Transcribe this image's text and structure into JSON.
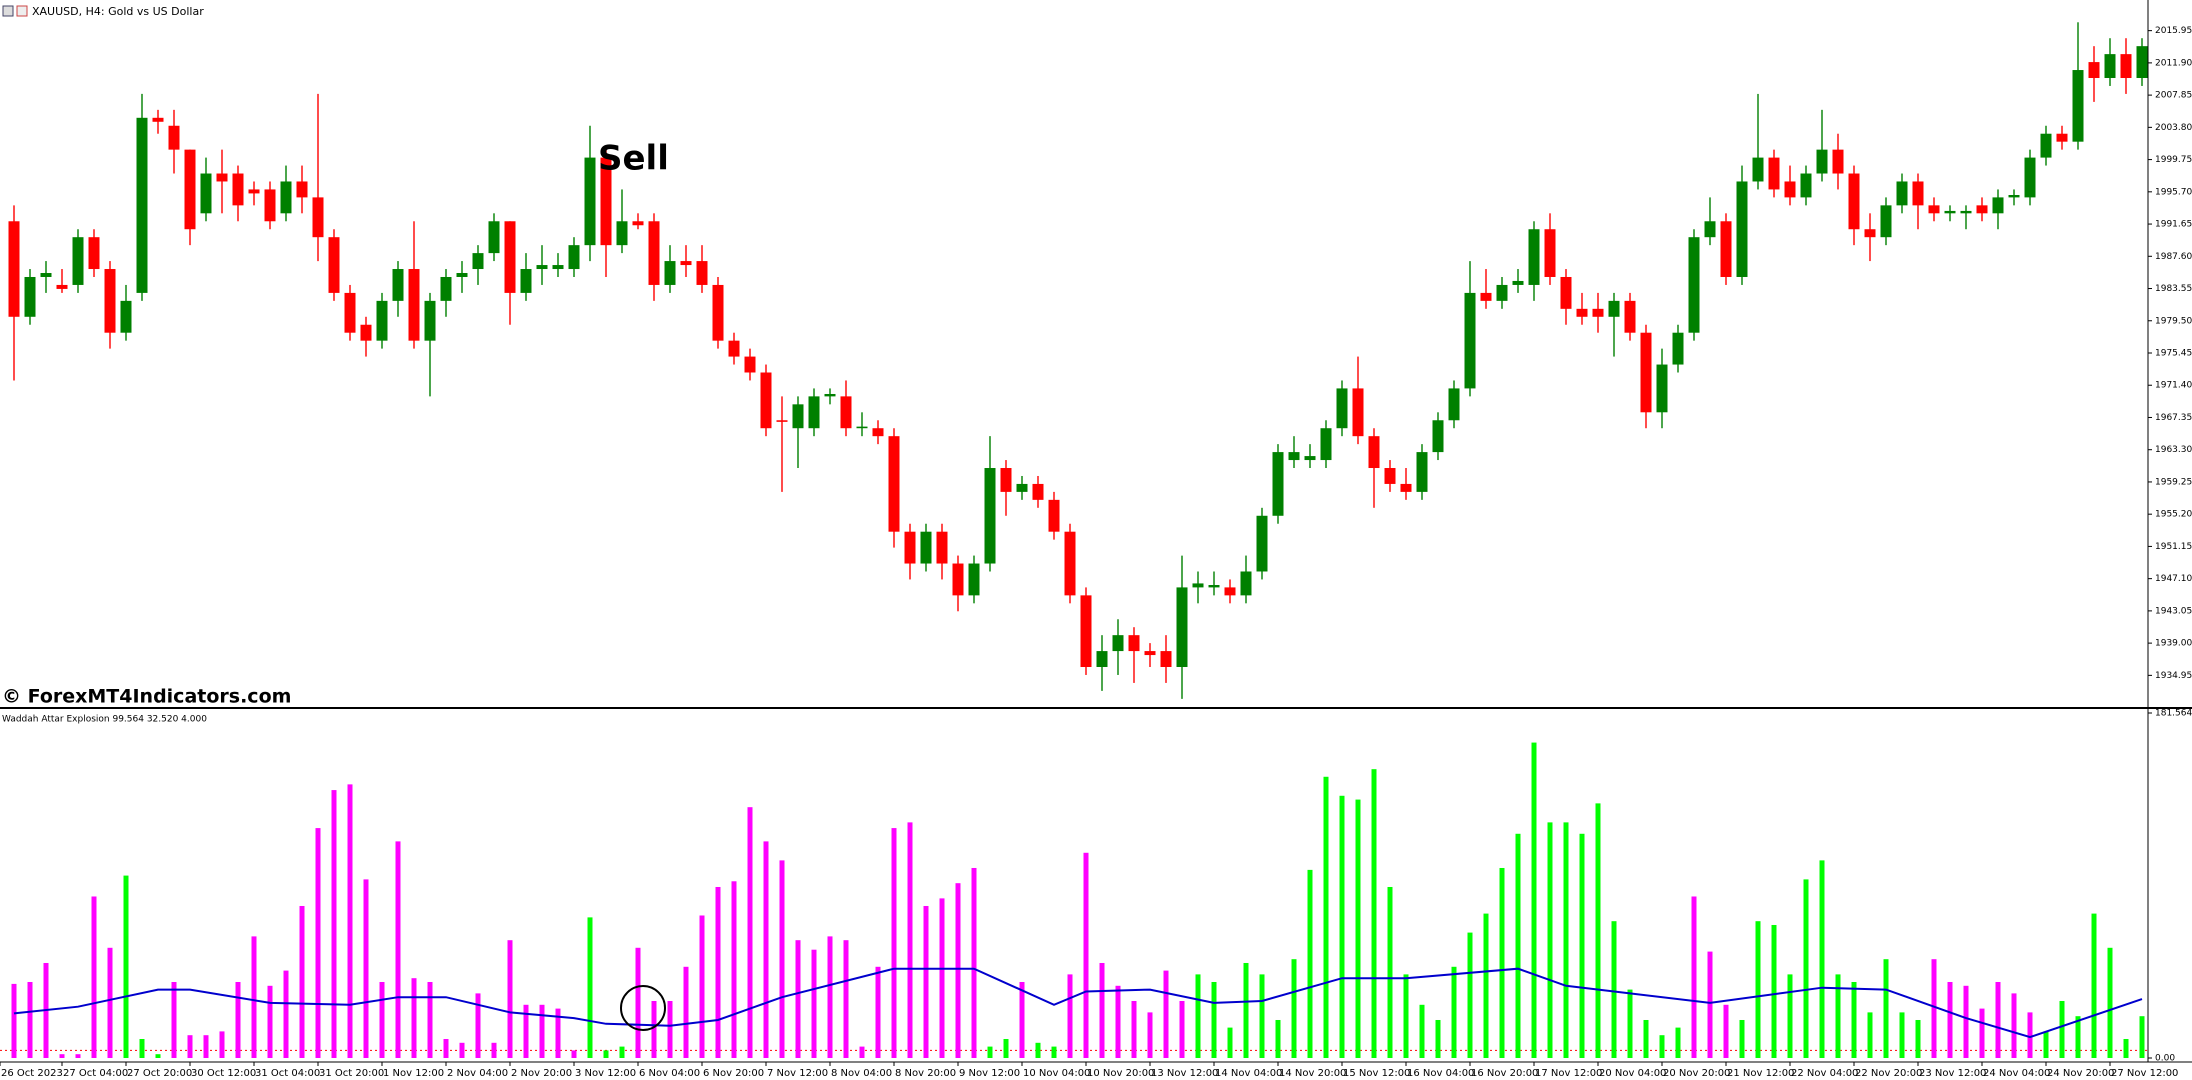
{
  "chart_data": [
    {
      "type": "candlestick",
      "title": "XAUUSD, H4:  Gold vs US Dollar",
      "annotation": "Sell",
      "watermark": "© ForexMT4Indicators.com",
      "up_color": "#008000",
      "down_color": "#ff0000",
      "ylim": [
        1931.1,
        2019.8
      ],
      "yticks": [
        2015.95,
        {
          "value": 2011.9,
          "label": "2011.90"
        },
        2007.85,
        {
          "value": 2003.8,
          "label": "2003.80"
        },
        1999.75,
        {
          "value": 1995.7,
          "label": "1995.70"
        },
        1991.65,
        {
          "value": 1987.6,
          "label": "1987.60"
        },
        1983.55,
        {
          "value": 1979.5,
          "label": "1979.50"
        },
        1975.45,
        {
          "value": 1971.4,
          "label": "1971.40"
        },
        1967.35,
        {
          "value": 1963.3,
          "label": "1963.30"
        },
        1959.25,
        {
          "value": 1955.2,
          "label": "1955.20"
        },
        1951.15,
        {
          "value": 1947.1,
          "label": "1947.10"
        },
        1943.05,
        {
          "value": 1939,
          "label": "1939.00"
        },
        1934.95
      ],
      "open": [
        1992,
        1980,
        1985,
        1984,
        1984,
        1990,
        1986,
        1978,
        1983,
        2005,
        2004,
        2001,
        1993,
        1998,
        1998,
        1996,
        1996,
        1993,
        1997,
        1995,
        1990,
        1983,
        1979,
        1977,
        1982,
        1986,
        1977,
        1982,
        1985,
        1986,
        1988,
        1992,
        1983,
        1986,
        1986,
        1986,
        1989,
        2000,
        1989,
        1992,
        1992,
        1984,
        1987,
        1987,
        1984,
        1977,
        1975,
        1973,
        1967,
        1966,
        1966,
        1970,
        1970,
        1966,
        1966,
        1965,
        1953,
        1949,
        1953,
        1949,
        1945,
        1949,
        1961,
        1958,
        1959,
        1957,
        1953,
        1945,
        1936,
        1938,
        1940,
        1938,
        1938,
        1936,
        1946,
        1946,
        1946,
        1945,
        1948,
        1955,
        1962,
        1962,
        1962,
        1966,
        1971,
        1965,
        1961,
        1959,
        1958,
        1963,
        1967,
        1971,
        1983,
        1982,
        1984,
        1984,
        1991,
        1985,
        1981,
        1981,
        1980,
        1982,
        1978,
        1968,
        1974,
        1978,
        1990,
        1992,
        1985,
        1997,
        2000,
        1997,
        1995,
        1998,
        2001,
        1998,
        1991,
        1990,
        1994,
        1997,
        1994,
        1993,
        1993,
        1994,
        1993,
        1995,
        1995,
        2000,
        2003,
        2002,
        2012,
        2010,
        2013,
        2010
      ],
      "high": [
        1994,
        1986,
        1987,
        1986,
        1991,
        1991,
        1987,
        1984,
        2008,
        2006,
        2006,
        2001,
        2000,
        2001,
        1999,
        1997,
        1997,
        1999,
        1999,
        2008,
        1991,
        1984,
        1980,
        1983,
        1987,
        1992,
        1983,
        1986,
        1987,
        1989,
        1993,
        1992,
        1988,
        1989,
        1988,
        1990,
        2004,
        2001,
        1996,
        1993,
        1993,
        1989,
        1989,
        1989,
        1985,
        1978,
        1976,
        1974,
        1970,
        1970,
        1971,
        1971,
        1972,
        1968,
        1967,
        1966,
        1954,
        1954,
        1954,
        1950,
        1950,
        1965,
        1962,
        1960,
        1960,
        1958,
        1954,
        1946,
        1940,
        1942,
        1941,
        1939,
        1940,
        1950,
        1948,
        1948,
        1947,
        1950,
        1956,
        1964,
        1965,
        1964,
        1967,
        1972,
        1975,
        1966,
        1962,
        1961,
        1964,
        1968,
        1972,
        1987,
        1986,
        1985,
        1986,
        1992,
        1993,
        1986,
        1983,
        1983,
        1983,
        1983,
        1979,
        1976,
        1979,
        1991,
        1995,
        1993,
        1999,
        2008,
        2001,
        1999,
        1999,
        2006,
        2003,
        1999,
        1993,
        1995,
        1998,
        1998,
        1995,
        1994,
        1994,
        1995,
        1996,
        1996,
        2001,
        2004,
        2004,
        2017,
        2014,
        2015,
        2015,
        2015
      ],
      "low": [
        1972,
        1979,
        1983,
        1983,
        1983,
        1985,
        1976,
        1977,
        1982,
        2003,
        1998,
        1989,
        1992,
        1993,
        1992,
        1994,
        1991,
        1992,
        1993,
        1987,
        1982,
        1977,
        1975,
        1976,
        1980,
        1976,
        1970,
        1980,
        1983,
        1984,
        1987,
        1979,
        1982,
        1984,
        1985,
        1985,
        1987,
        1985,
        1988,
        1991,
        1982,
        1983,
        1985,
        1983,
        1976,
        1974,
        1972,
        1965,
        1958,
        1961,
        1965,
        1969,
        1965,
        1965,
        1964,
        1951,
        1947,
        1948,
        1947,
        1943,
        1944,
        1948,
        1955,
        1957,
        1956,
        1952,
        1944,
        1935,
        1933,
        1935,
        1934,
        1936,
        1934,
        1932,
        1944,
        1945,
        1944,
        1944,
        1947,
        1954,
        1961,
        1961,
        1961,
        1965,
        1964,
        1956,
        1958,
        1957,
        1957,
        1962,
        1966,
        1970,
        1981,
        1981,
        1983,
        1982,
        1984,
        1979,
        1979,
        1978,
        1975,
        1977,
        1966,
        1966,
        1973,
        1977,
        1989,
        1984,
        1984,
        1996,
        1995,
        1994,
        1994,
        1997,
        1996,
        1989,
        1987,
        1989,
        1993,
        1991,
        1992,
        1992,
        1991,
        1992,
        1991,
        1994,
        1994,
        1999,
        2001,
        2001,
        2007,
        2009,
        2008,
        2009
      ],
      "close": [
        1980,
        1985,
        1985.5,
        1983.5,
        1990,
        1986,
        1978,
        1982,
        2005,
        2004.5,
        2001,
        1991,
        1998,
        1997,
        1994,
        1995.5,
        1992,
        1997,
        1995,
        1990,
        1983,
        1978,
        1977,
        1982,
        1986,
        1977,
        1982,
        1985,
        1985.5,
        1988,
        1992,
        1983,
        1986,
        1986.5,
        1986.5,
        1989,
        2000,
        1989,
        1992,
        1991.5,
        1984,
        1987,
        1986.5,
        1984,
        1977,
        1975,
        1973,
        1966,
        1966.8,
        1969,
        1970,
        1970.3,
        1966,
        1966.2,
        1965,
        1953,
        1949,
        1953,
        1949,
        1945,
        1949,
        1961,
        1958,
        1959,
        1957,
        1953,
        1945,
        1936,
        1938,
        1940,
        1938,
        1937.5,
        1936,
        1946,
        1946.5,
        1946.3,
        1945,
        1948,
        1955,
        1963,
        1963,
        1962.5,
        1966,
        1971,
        1965,
        1961,
        1959,
        1958,
        1963,
        1967,
        1971,
        1983,
        1982,
        1984,
        1984.5,
        1991,
        1985,
        1981,
        1980,
        1980,
        1982,
        1978,
        1968,
        1974,
        1978,
        1990,
        1992,
        1985,
        1997,
        2000,
        1996,
        1995,
        1998,
        2001,
        1998,
        1991,
        1990,
        1994,
        1997,
        1994,
        1993,
        1993.3,
        1993.3,
        1993,
        1995,
        1995.3,
        2000,
        2003,
        2002,
        2011,
        2010,
        2013,
        2010,
        2014
      ]
    },
    {
      "type": "histogram_line",
      "title": "Waddah Attar Explosion 99.564 32.520 4.000",
      "ylim": [
        0,
        181.564
      ],
      "yticks": [
        {
          "value": 0,
          "label": "0.00"
        },
        181.564
      ],
      "xticks": [
        {
          "value": 0,
          "label": "26 Oct 2023"
        },
        {
          "value": 4,
          "label": "27 Oct 04:00"
        },
        {
          "value": 8,
          "label": "27 Oct 20:00"
        },
        {
          "value": 12,
          "label": "30 Oct 12:00"
        },
        {
          "value": 16,
          "label": "31 Oct 04:00"
        },
        {
          "value": 20,
          "label": "31 Oct 20:00"
        },
        {
          "value": 24,
          "label": "1 Nov 12:00"
        },
        {
          "value": 28,
          "label": "2 Nov 04:00"
        },
        {
          "value": 32,
          "label": "2 Nov 20:00"
        },
        {
          "value": 36,
          "label": "3 Nov 12:00"
        },
        {
          "value": 40,
          "label": "6 Nov 04:00"
        },
        {
          "value": 44,
          "label": "6 Nov 20:00"
        },
        {
          "value": 48,
          "label": "7 Nov 12:00"
        },
        {
          "value": 52,
          "label": "8 Nov 04:00"
        },
        {
          "value": 56,
          "label": "8 Nov 20:00"
        },
        {
          "value": 60,
          "label": "9 Nov 12:00"
        },
        {
          "value": 64,
          "label": "10 Nov 04:00"
        },
        {
          "value": 68,
          "label": "10 Nov 20:00"
        },
        {
          "value": 72,
          "label": "13 Nov 12:00"
        },
        {
          "value": 76,
          "label": "14 Nov 04:00"
        },
        {
          "value": 80,
          "label": "14 Nov 20:00"
        },
        {
          "value": 84,
          "label": "15 Nov 12:00"
        },
        {
          "value": 88,
          "label": "16 Nov 04:00"
        },
        {
          "value": 92,
          "label": "16 Nov 20:00"
        },
        {
          "value": 96,
          "label": "17 Nov 12:00"
        },
        {
          "value": 100,
          "label": "20 Nov 04:00"
        },
        {
          "value": 104,
          "label": "20 Nov 20:00"
        },
        {
          "value": 108,
          "label": "21 Nov 12:00"
        },
        {
          "value": 112,
          "label": "22 Nov 04:00"
        },
        {
          "value": 116,
          "label": "22 Nov 20:00"
        },
        {
          "value": 120,
          "label": "23 Nov 12:00"
        },
        {
          "value": 124,
          "label": "24 Nov 04:00"
        },
        {
          "value": 128,
          "label": "24 Nov 20:00"
        },
        {
          "value": 132,
          "label": "27 Nov 12:00"
        }
      ],
      "values": [
        39,
        40,
        50,
        2,
        2,
        85,
        58,
        96,
        10,
        2,
        40,
        12,
        12,
        14,
        40,
        64,
        38,
        46,
        80,
        121,
        141,
        144,
        94,
        40,
        114,
        42,
        40,
        10,
        8,
        34,
        8,
        62,
        28,
        28,
        26,
        4,
        74,
        4,
        6,
        58,
        30,
        30,
        48,
        75,
        90,
        93,
        132,
        114,
        104,
        62,
        57,
        64,
        62,
        6,
        48,
        121,
        124,
        80,
        84,
        92,
        100,
        6,
        10,
        40,
        8,
        6,
        44,
        108,
        50,
        38,
        30,
        24,
        46,
        30,
        44,
        40,
        16,
        50,
        44,
        20,
        52,
        99,
        148,
        138,
        136,
        152,
        90,
        44,
        28,
        20,
        48,
        66,
        76,
        100,
        118,
        166,
        124,
        124,
        118,
        134,
        72,
        36,
        20,
        12,
        16,
        85,
        56,
        28,
        20,
        72,
        70,
        44,
        94,
        104,
        44,
        40,
        24,
        52,
        24,
        20,
        52,
        40,
        38,
        26,
        40,
        34,
        24,
        14,
        30,
        22,
        76,
        58,
        10,
        22
      ],
      "colors": [
        "#ff00ff",
        "#ff00ff",
        "#ff00ff",
        "#ff00ff",
        "#ff00ff",
        "#ff00ff",
        "#ff00ff",
        "#00ff00",
        "#00ff00",
        "#00ff00",
        "#ff00ff",
        "#ff00ff",
        "#ff00ff",
        "#ff00ff",
        "#ff00ff",
        "#ff00ff",
        "#ff00ff",
        "#ff00ff",
        "#ff00ff",
        "#ff00ff",
        "#ff00ff",
        "#ff00ff",
        "#ff00ff",
        "#ff00ff",
        "#ff00ff",
        "#ff00ff",
        "#ff00ff",
        "#ff00ff",
        "#ff00ff",
        "#ff00ff",
        "#ff00ff",
        "#ff00ff",
        "#ff00ff",
        "#ff00ff",
        "#ff00ff",
        "#ff00ff",
        "#00ff00",
        "#00ff00",
        "#00ff00",
        "#ff00ff",
        "#ff00ff",
        "#ff00ff",
        "#ff00ff",
        "#ff00ff",
        "#ff00ff",
        "#ff00ff",
        "#ff00ff",
        "#ff00ff",
        "#ff00ff",
        "#ff00ff",
        "#ff00ff",
        "#ff00ff",
        "#ff00ff",
        "#ff00ff",
        "#ff00ff",
        "#ff00ff",
        "#ff00ff",
        "#ff00ff",
        "#ff00ff",
        "#ff00ff",
        "#ff00ff",
        "#00ff00",
        "#00ff00",
        "#ff00ff",
        "#00ff00",
        "#00ff00",
        "#ff00ff",
        "#ff00ff",
        "#ff00ff",
        "#ff00ff",
        "#ff00ff",
        "#ff00ff",
        "#ff00ff",
        "#ff00ff",
        "#00ff00",
        "#00ff00",
        "#00ff00",
        "#00ff00",
        "#00ff00",
        "#00ff00",
        "#00ff00",
        "#00ff00",
        "#00ff00",
        "#00ff00",
        "#00ff00",
        "#00ff00",
        "#00ff00",
        "#00ff00",
        "#00ff00",
        "#00ff00",
        "#00ff00",
        "#00ff00",
        "#00ff00",
        "#00ff00",
        "#00ff00",
        "#00ff00",
        "#00ff00",
        "#00ff00",
        "#00ff00",
        "#00ff00",
        "#00ff00",
        "#00ff00",
        "#00ff00",
        "#00ff00",
        "#00ff00",
        "#ff00ff",
        "#ff00ff",
        "#ff00ff",
        "#00ff00",
        "#00ff00",
        "#00ff00",
        "#00ff00",
        "#00ff00",
        "#00ff00",
        "#00ff00",
        "#00ff00",
        "#00ff00",
        "#00ff00",
        "#00ff00",
        "#00ff00",
        "#ff00ff",
        "#ff00ff",
        "#ff00ff",
        "#ff00ff",
        "#ff00ff",
        "#ff00ff",
        "#ff00ff",
        "#00ff00",
        "#00ff00",
        "#00ff00",
        "#00ff00",
        "#00ff00",
        "#00ff00",
        "#00ff00"
      ],
      "line": {
        "color": "#0000cd",
        "x": [
          0,
          4,
          9,
          11,
          16,
          21,
          24,
          27,
          31,
          35,
          37,
          41,
          44,
          48,
          55,
          60,
          65,
          67,
          71,
          75,
          78,
          83,
          87,
          94,
          97,
          106,
          113,
          117,
          122,
          126,
          133
        ],
        "values": [
          23.5,
          27,
          36,
          36,
          29,
          28,
          32,
          32,
          24,
          21,
          18,
          17,
          20,
          32,
          47,
          47,
          28,
          35,
          36,
          29,
          30,
          42,
          42,
          47,
          38,
          29,
          37,
          36,
          21,
          11,
          31
        ]
      },
      "deadzone": {
        "value": 4,
        "color": "#ff0000"
      }
    }
  ]
}
